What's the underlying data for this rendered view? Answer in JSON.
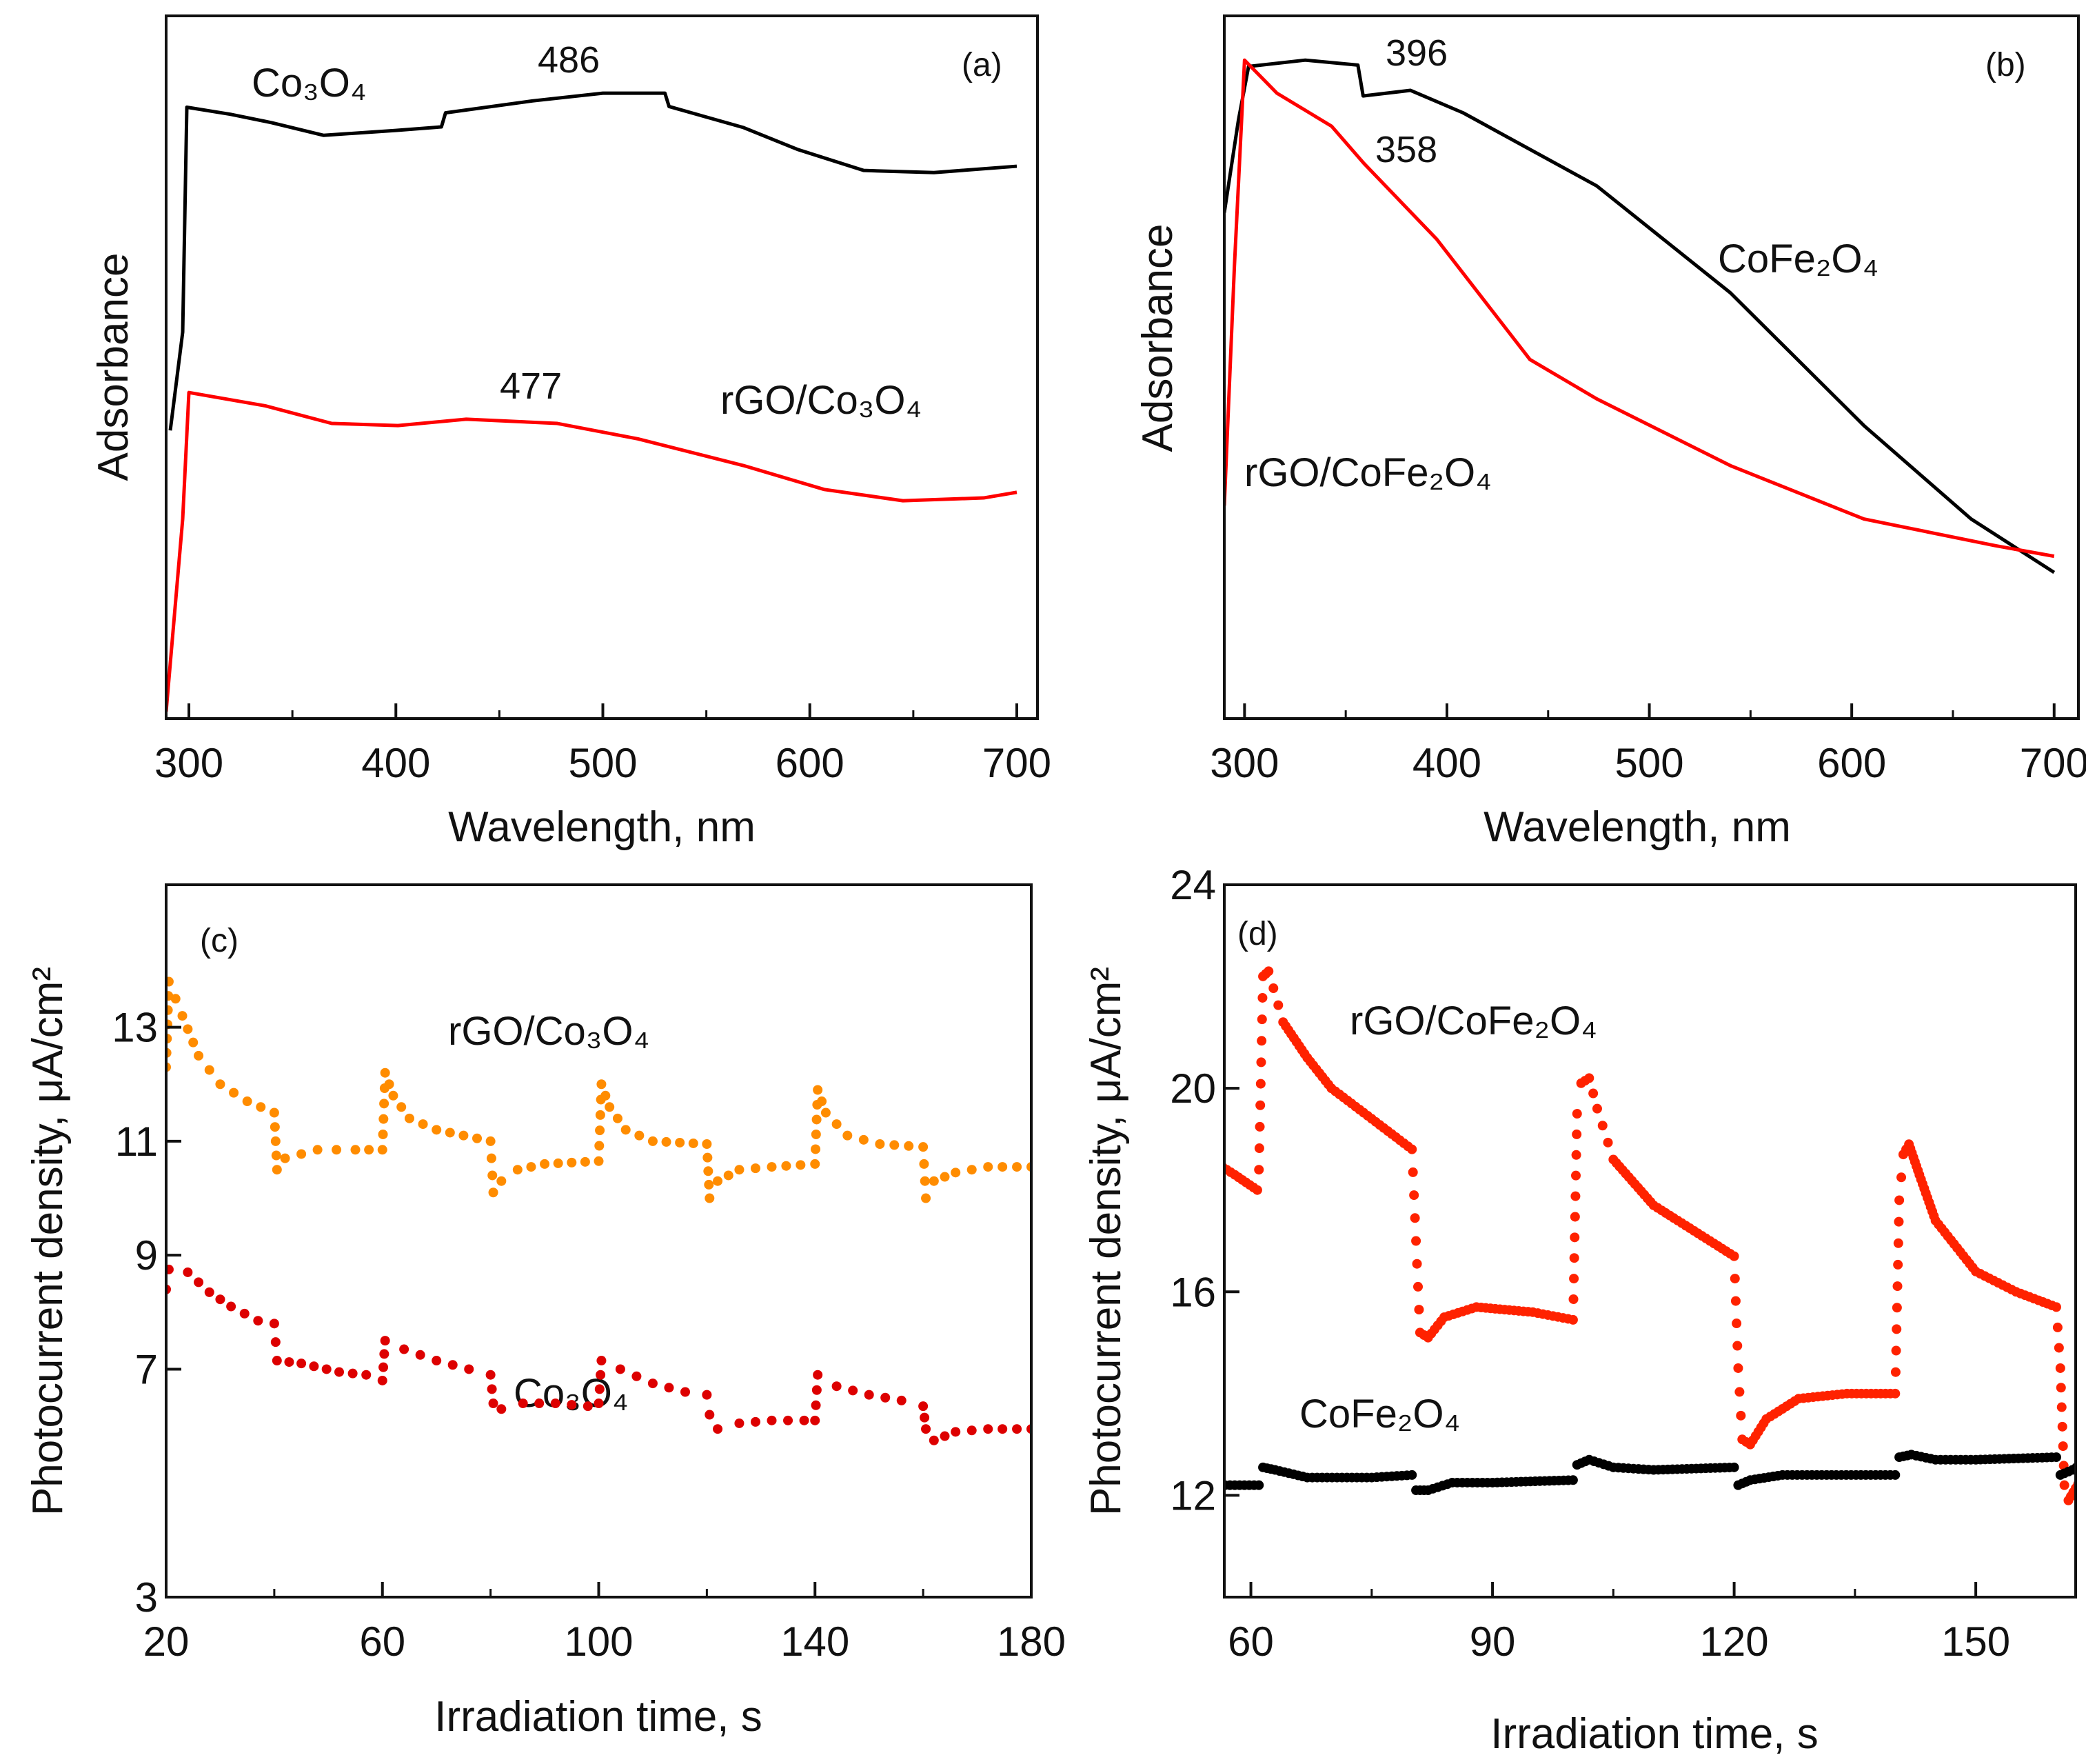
{
  "chart_data": [
    {
      "panel": "(a)",
      "type": "line",
      "xlabel": "Wavelength, nm",
      "ylabel": "Adsorbance",
      "xlim": [
        289,
        710
      ],
      "ylim": [
        0,
        1
      ],
      "xticks": [
        300,
        400,
        500,
        600,
        700
      ],
      "yticks": [],
      "annotations": [
        "486",
        "477"
      ],
      "series": [
        {
          "name": "Co₃O₄",
          "color": "#000000",
          "x": [
            291,
            297,
            299,
            320,
            340,
            365,
            400,
            422,
            424,
            466,
            500,
            530,
            532,
            568,
            594,
            626,
            660,
            700
          ],
          "y": [
            0.41,
            0.55,
            0.87,
            0.86,
            0.848,
            0.83,
            0.837,
            0.842,
            0.862,
            0.879,
            0.89,
            0.89,
            0.871,
            0.841,
            0.81,
            0.78,
            0.777,
            0.786
          ]
        },
        {
          "name": "rGO/Co₃O₄",
          "color": "#ff0000",
          "x": [
            289,
            297,
            300,
            337,
            369,
            401,
            434,
            478,
            517,
            568,
            607,
            645,
            684,
            700
          ],
          "y": [
            0.01,
            0.284,
            0.464,
            0.445,
            0.42,
            0.417,
            0.426,
            0.42,
            0.398,
            0.36,
            0.326,
            0.31,
            0.314,
            0.322
          ]
        }
      ]
    },
    {
      "panel": "(b)",
      "type": "line",
      "xlabel": "Wavelength, nm",
      "ylabel": "Adsorbance",
      "xlim": [
        290,
        712
      ],
      "ylim": [
        0,
        1
      ],
      "xticks": [
        300,
        400,
        500,
        600,
        700
      ],
      "yticks": [],
      "annotations": [
        "396",
        "358"
      ],
      "series": [
        {
          "name": "CoFe₂O₄",
          "color": "#000000",
          "x": [
            290,
            297,
            302,
            330,
            356,
            358.6,
            382,
            408,
            474,
            540,
            606,
            659,
            700
          ],
          "y": [
            0.72,
            0.852,
            0.928,
            0.937,
            0.93,
            0.886,
            0.894,
            0.862,
            0.758,
            0.606,
            0.417,
            0.284,
            0.208
          ]
        },
        {
          "name": "rGO/CoFe₂O₄",
          "color": "#ff0000",
          "x": [
            290,
            295,
            300,
            316,
            343,
            359,
            395,
            441,
            474,
            540,
            606,
            671,
            700
          ],
          "y": [
            0.303,
            0.644,
            0.937,
            0.89,
            0.843,
            0.79,
            0.682,
            0.511,
            0.455,
            0.36,
            0.284,
            0.246,
            0.231
          ]
        }
      ]
    },
    {
      "panel": "(c)",
      "type": "scatter",
      "xlabel": "Irradiation time, s",
      "ylabel": "Photocurrent density, μA/cm²",
      "xlim": [
        20,
        180
      ],
      "ylim": [
        3,
        15.5
      ],
      "xticks": [
        20,
        60,
        100,
        140,
        180
      ],
      "yticks": [
        3,
        7,
        9,
        11,
        13
      ],
      "series": [
        {
          "name": "rGO/Co₃O₄",
          "color": "#ff8c00",
          "x": [
            20,
            20.5,
            23,
            26,
            30,
            35,
            40,
            40.5,
            42,
            48,
            55,
            60,
            60.5,
            62,
            65,
            70,
            80,
            80.5,
            82,
            85,
            90,
            100,
            100.5,
            102,
            105,
            110,
            120,
            120.5,
            122,
            126,
            132,
            140,
            140.5,
            142,
            146,
            152,
            160,
            160.5,
            162,
            166,
            172,
            180
          ],
          "y": [
            12.3,
            13.8,
            13.2,
            12.5,
            12.0,
            11.7,
            11.5,
            10.5,
            10.7,
            10.85,
            10.85,
            10.85,
            12.2,
            11.8,
            11.4,
            11.2,
            11.0,
            10.1,
            10.3,
            10.5,
            10.6,
            10.65,
            12.0,
            11.6,
            11.2,
            11.0,
            10.95,
            10.0,
            10.3,
            10.5,
            10.55,
            10.6,
            11.9,
            11.5,
            11.1,
            10.95,
            10.9,
            10.0,
            10.3,
            10.45,
            10.55,
            10.55
          ]
        },
        {
          "name": "Co₃O₄",
          "color": "#dd0000",
          "x": [
            20,
            20.5,
            24,
            28,
            32,
            37,
            40,
            40.5,
            45,
            52,
            57,
            60,
            60.5,
            64,
            70,
            76,
            80,
            80.5,
            82,
            86,
            92,
            98,
            100,
            100.5,
            104,
            110,
            116,
            120,
            120.5,
            122,
            126,
            132,
            138,
            140,
            140.5,
            144,
            150,
            156,
            160,
            160.5,
            162,
            166,
            172,
            180
          ],
          "y": [
            8.4,
            8.75,
            8.7,
            8.35,
            8.1,
            7.85,
            7.8,
            7.15,
            7.1,
            6.95,
            6.9,
            6.8,
            7.5,
            7.35,
            7.15,
            7.0,
            6.9,
            6.4,
            6.3,
            6.4,
            6.4,
            6.35,
            6.4,
            7.15,
            7.0,
            6.75,
            6.6,
            6.55,
            6.2,
            5.95,
            6.05,
            6.1,
            6.1,
            6.1,
            6.9,
            6.7,
            6.55,
            6.45,
            6.35,
            5.95,
            5.75,
            5.9,
            5.95,
            5.95
          ]
        }
      ]
    },
    {
      "panel": "(d)",
      "type": "scatter",
      "xlabel": "Irradiation time, s",
      "ylabel": "Photocurrent density, μA/cm²",
      "xlim": [
        56.7,
        162.4
      ],
      "ylim": [
        10,
        24
      ],
      "xticks": [
        60,
        90,
        120,
        150
      ],
      "yticks": [
        12,
        16,
        20,
        24
      ],
      "series": [
        {
          "name": "rGO/CoFe₂O₄",
          "color": "#ff2200",
          "x": [
            55,
            58,
            60.8,
            61,
            61.5,
            62.2,
            64,
            67,
            70,
            75,
            80,
            80.5,
            81,
            82,
            84,
            88,
            95,
            100,
            100.5,
            101,
            102,
            103,
            105,
            110,
            115,
            120,
            120.5,
            121,
            122,
            124,
            128,
            134,
            140,
            140.5,
            141,
            141.7,
            143,
            145,
            150,
            155,
            160,
            160.5,
            161,
            161.5,
            163
          ],
          "y": [
            18.6,
            18.3,
            18.0,
            18.4,
            22.2,
            22.3,
            21.3,
            20.6,
            20.0,
            19.4,
            18.8,
            17.0,
            15.2,
            15.1,
            15.5,
            15.7,
            15.6,
            15.45,
            19.5,
            20.1,
            20.2,
            19.6,
            18.6,
            17.7,
            17.2,
            16.7,
            14.5,
            13.1,
            13.0,
            13.5,
            13.9,
            14.0,
            14.0,
            17.8,
            18.7,
            18.9,
            18.3,
            17.4,
            16.4,
            16.0,
            15.7,
            14.5,
            12.2,
            11.9,
            12.3
          ]
        },
        {
          "name": "CoFe₂O₄",
          "color": "#000000",
          "x": [
            55,
            61,
            61.5,
            63,
            67,
            75,
            80,
            80.5,
            82,
            85,
            90,
            100,
            100.5,
            102,
            105,
            110,
            120,
            120.5,
            122,
            126,
            140,
            140.5,
            142,
            145,
            150,
            160,
            160.5,
            162,
            163
          ],
          "y": [
            12.2,
            12.2,
            12.55,
            12.5,
            12.35,
            12.35,
            12.4,
            12.1,
            12.1,
            12.25,
            12.25,
            12.3,
            12.6,
            12.7,
            12.55,
            12.5,
            12.55,
            12.2,
            12.3,
            12.4,
            12.4,
            12.75,
            12.8,
            12.7,
            12.7,
            12.75,
            12.4,
            12.5,
            12.6
          ]
        }
      ]
    }
  ]
}
